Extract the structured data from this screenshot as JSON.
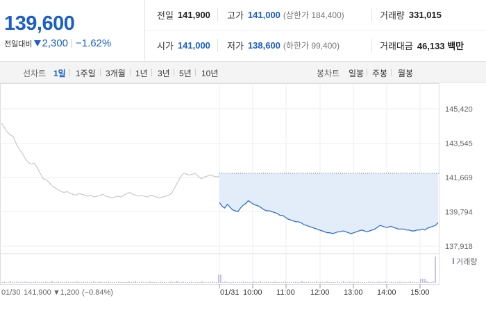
{
  "quote": {
    "price": "139,600",
    "change_label": "전일대비",
    "change_value": "2,300",
    "change_percent": "−1.62%",
    "direction": "down",
    "color_down": "#1a5fc8"
  },
  "stats": {
    "prev_close": {
      "label": "전일",
      "value": "141,900"
    },
    "high": {
      "label": "고가",
      "value": "141,000",
      "sub": "(상한가 184,400)"
    },
    "volume": {
      "label": "거래량",
      "value": "331,015"
    },
    "open": {
      "label": "시가",
      "value": "141,000"
    },
    "low": {
      "label": "저가",
      "value": "138,600",
      "sub": "(하한가 99,400)"
    },
    "amount": {
      "label": "거래대금",
      "value": "46,133 백만"
    }
  },
  "toolbar": {
    "line_label": "선차트",
    "line_periods": [
      "1일",
      "1주일",
      "3개월",
      "1년",
      "3년",
      "5년",
      "10년"
    ],
    "active_period": "1일",
    "candle_label": "봉차트",
    "candle_periods": [
      "일봉",
      "주봉",
      "월봉"
    ]
  },
  "chart_data": {
    "type": "line",
    "y_ticks": [
      "145,420",
      "143,545",
      "141,669",
      "139,794",
      "137,918"
    ],
    "y_tick_values": [
      145420,
      143545,
      141669,
      139794,
      137918
    ],
    "prev_close": 141900,
    "prev_day": {
      "date": "01/30",
      "close": "141,900",
      "change": "▼1,200",
      "change_percent": "(−0.84%)",
      "values": [
        144650,
        144400,
        144150,
        144000,
        143900,
        143500,
        143200,
        143000,
        142700,
        142500,
        142400,
        142450,
        142200,
        141900,
        141600,
        141550,
        141400,
        141200,
        141100,
        141000,
        140900,
        140850,
        140900,
        140800,
        140750,
        140700,
        140800,
        140750,
        140700,
        140650,
        140700,
        140600,
        140650,
        140700,
        140750,
        140650,
        140600,
        140550,
        140600,
        140650,
        140600,
        140700,
        140800,
        140850,
        140750,
        140700,
        140650,
        140700,
        140650,
        140600,
        140700,
        140650,
        140600,
        140550,
        140600,
        140650,
        140700,
        140800,
        141100,
        141400,
        141700,
        141900,
        141850,
        141800,
        141850,
        141900,
        141700,
        141600,
        141700,
        141750,
        141800,
        141750,
        141700,
        141750
      ]
    },
    "today": {
      "date": "01/31",
      "values": [
        140300,
        140100,
        140000,
        140200,
        140050,
        139900,
        139850,
        139800,
        140000,
        140150,
        140250,
        140400,
        140300,
        140200,
        140150,
        140100,
        140000,
        139900,
        139850,
        139850,
        139800,
        139750,
        139700,
        139600,
        139600,
        139500,
        139400,
        139350,
        139300,
        139250,
        139250,
        139200,
        139100,
        139050,
        139000,
        138950,
        138900,
        138850,
        138800,
        138750,
        138700,
        138650,
        138650,
        138600,
        138650,
        138700,
        138700,
        138750,
        138700,
        138650,
        138600,
        138650,
        138700,
        138750,
        138800,
        138750,
        138700,
        138750,
        138800,
        138850,
        138950,
        139050,
        139000,
        138950,
        138950,
        139000,
        138950,
        138900,
        138850,
        138850,
        138850,
        138800,
        138800,
        138750,
        138750,
        138800,
        138800,
        138850,
        138800,
        138900,
        138950,
        139000,
        139050,
        139200
      ]
    },
    "time_labels": [
      "01/31",
      "10:00",
      "11:00",
      "12:00",
      "13:00",
      "14:00",
      "15:00"
    ],
    "volume_legend": "거래량",
    "line_color_prev": "#c8c8c8",
    "line_color_today": "#2f6fd1",
    "fill_color": "#e3edfa"
  }
}
